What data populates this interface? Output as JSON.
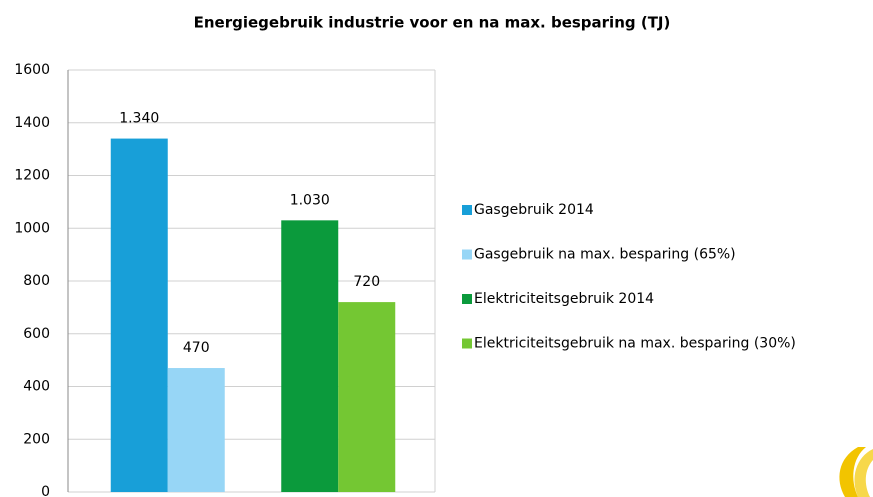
{
  "chart_data": {
    "type": "bar",
    "title": "Energiegebruik  industrie voor en na max. besparing (TJ)",
    "categories": [
      null,
      null
    ],
    "series": [
      {
        "name": "Gasgebruik 2014",
        "color": "#189fd8",
        "values": [
          1340,
          null
        ],
        "value_labels": [
          "1.340",
          null
        ]
      },
      {
        "name": "Gasgebruik na max. besparing (65%)",
        "color": "#97d6f6",
        "values": [
          470,
          null
        ]
      },
      {
        "name": "Elektriciteitsgebruik 2014",
        "color": "#0b9a3c",
        "values": [
          null,
          1030
        ],
        "value_labels": [
          null,
          "1.030"
        ]
      },
      {
        "name": "Elektriciteitsgebruik na max. besparing (30%)",
        "color": "#74c733",
        "values": [
          null,
          720
        ]
      }
    ],
    "ylim": [
      0,
      1600
    ],
    "yticks": [
      0,
      200,
      400,
      600,
      800,
      1000,
      1200,
      1400,
      1600
    ],
    "grid": true,
    "legend": "right"
  }
}
